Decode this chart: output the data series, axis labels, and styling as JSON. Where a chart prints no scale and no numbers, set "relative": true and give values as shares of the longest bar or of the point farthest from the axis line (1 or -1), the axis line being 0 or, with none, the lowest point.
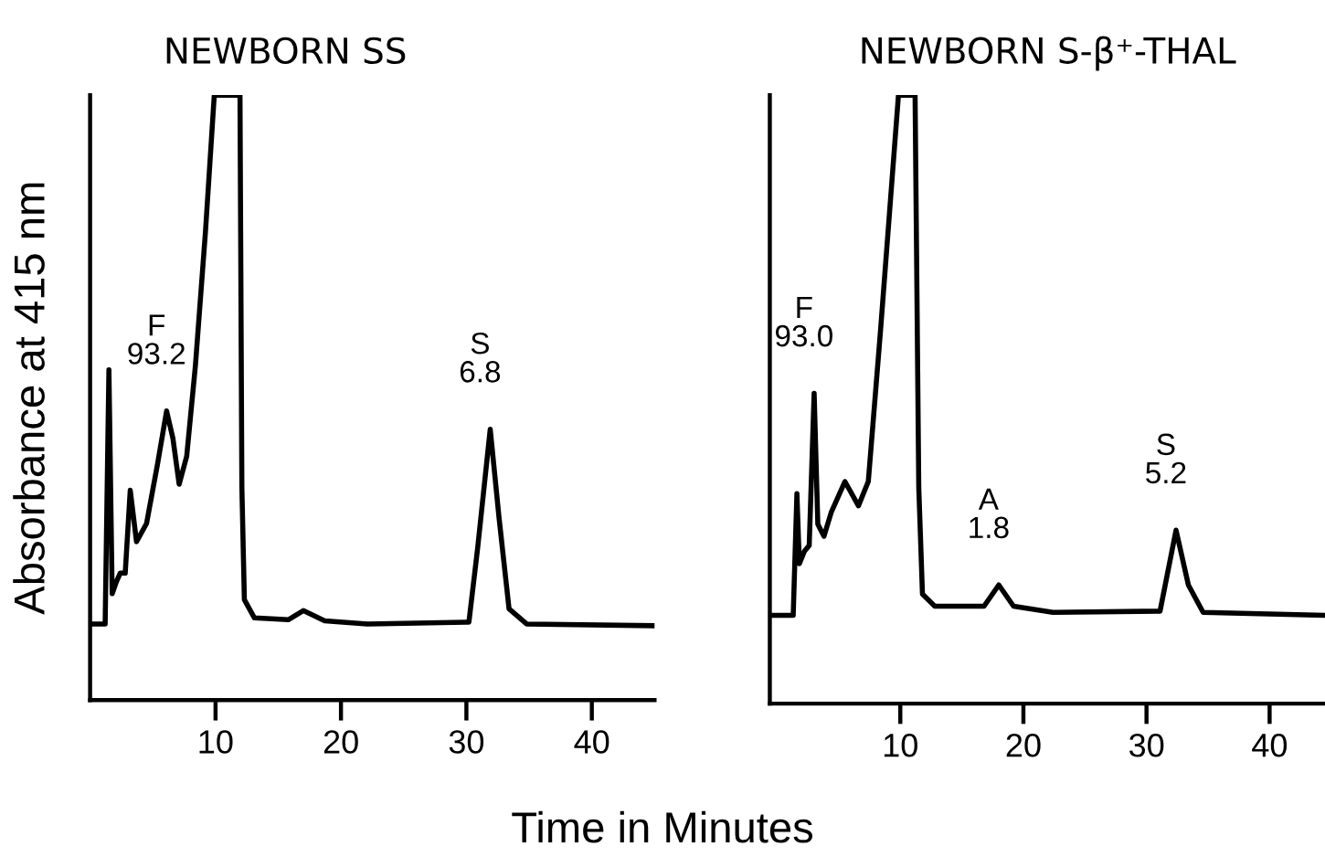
{
  "chart_data": [
    {
      "type": "line",
      "title": "NEWBORN SS",
      "xlabel": "Time in Minutes",
      "ylabel": "Absorbance at 415 nm",
      "relative": true,
      "xlim": [
        0,
        45
      ],
      "xticks": [
        10,
        20,
        30,
        40
      ],
      "tick_labels": "x",
      "grid": false,
      "legend": false,
      "series": [
        {
          "color": "#000000",
          "x": [
            0,
            1.2,
            1.5,
            1.76,
            2.1,
            2.4,
            2.8,
            3.2,
            3.7,
            4.5,
            5.4,
            6.1,
            6.6,
            7.1,
            7.7,
            8.4,
            9.2,
            9.9,
            11.95,
            12.1,
            12.3,
            13.1,
            15.8,
            17.0,
            18.7,
            22.1,
            30.2,
            30.9,
            31.9,
            32.6,
            33.4,
            34.8,
            45.0
          ],
          "values": [
            0.126,
            0.126,
            0.546,
            0.176,
            0.196,
            0.21,
            0.21,
            0.347,
            0.262,
            0.292,
            0.393,
            0.478,
            0.433,
            0.357,
            0.403,
            0.554,
            0.775,
            1.0,
            1.0,
            0.352,
            0.166,
            0.136,
            0.133,
            0.148,
            0.131,
            0.126,
            0.129,
            0.252,
            0.448,
            0.302,
            0.151,
            0.126,
            0.123
          ]
        }
      ],
      "annotations": [
        {
          "text": "F\n93.2",
          "x": 6.1,
          "y": 0.478
        },
        {
          "text": "S\n6.8",
          "x": 31.9,
          "y": 0.448
        }
      ]
    },
    {
      "type": "line",
      "title": "NEWBORN S-β⁺-THAL",
      "relative": true,
      "xlim": [
        -0.6,
        44.5
      ],
      "xticks": [
        10,
        20,
        30,
        40
      ],
      "tick_labels": "x",
      "grid": false,
      "legend": false,
      "series": [
        {
          "color": "#000000",
          "x": [
            -0.55,
            1.3,
            1.6,
            1.8,
            2.2,
            2.6,
            3.0,
            3.3,
            3.8,
            4.4,
            5.5,
            6.6,
            7.4,
            8.4,
            9.85,
            11.2,
            11.5,
            11.8,
            12.8,
            16.8,
            18.0,
            19.2,
            22.4,
            31.1,
            32.4,
            33.4,
            34.6,
            44.5
          ],
          "values": [
            0.145,
            0.145,
            0.345,
            0.23,
            0.25,
            0.26,
            0.51,
            0.295,
            0.275,
            0.315,
            0.365,
            0.325,
            0.365,
            0.615,
            1.0,
            1.0,
            0.355,
            0.18,
            0.16,
            0.16,
            0.195,
            0.16,
            0.15,
            0.152,
            0.285,
            0.195,
            0.15,
            0.145
          ]
        }
      ],
      "annotations": [
        {
          "text": "F\n93.0",
          "x": 3.0,
          "y": 0.51
        },
        {
          "text": "A\n1.8",
          "x": 18.0,
          "y": 0.195
        },
        {
          "text": "S\n5.2",
          "x": 32.4,
          "y": 0.285
        }
      ]
    }
  ]
}
